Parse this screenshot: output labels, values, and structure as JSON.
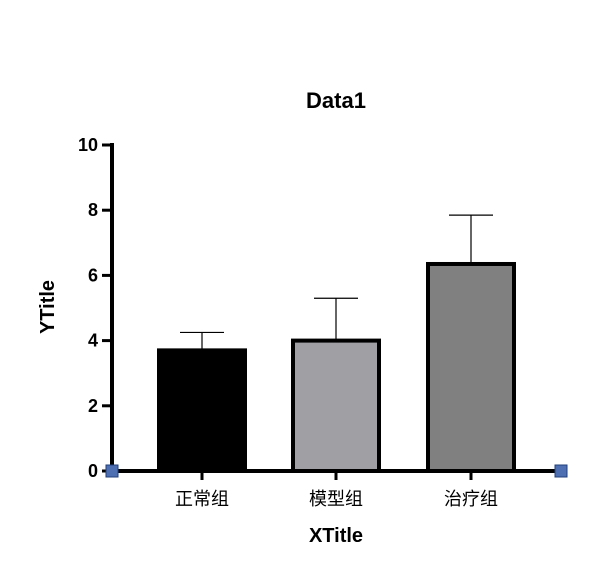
{
  "chart_data": {
    "type": "bar",
    "title": "Data1",
    "xlabel": "XTitle",
    "ylabel": "YTitle",
    "ylim": [
      0,
      10
    ],
    "yticks": [
      0,
      2,
      4,
      6,
      8,
      10
    ],
    "categories": [
      "正常组",
      "模型组",
      "治疗组"
    ],
    "values": [
      3.7,
      4.0,
      6.35
    ],
    "error_plus": [
      0.55,
      1.3,
      1.5
    ],
    "bar_colors": [
      "#000000",
      "#a0a0a4",
      "#808080"
    ],
    "bar_outline": "#000000",
    "axis_color": "#000000",
    "axis_end_marker_color": "#4f6fb3",
    "grid": false
  }
}
